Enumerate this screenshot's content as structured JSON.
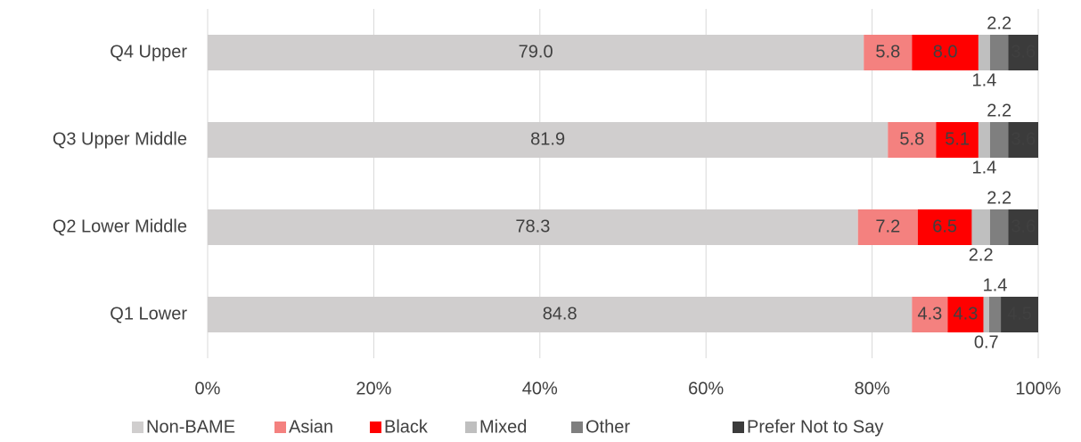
{
  "chart_data": {
    "type": "stacked_barh",
    "categories": [
      "Q4 Upper",
      "Q3 Upper Middle",
      "Q2 Lower Middle",
      "Q1 Lower"
    ],
    "series": [
      {
        "name": "Non-BAME",
        "color": "#d0cece",
        "values": [
          79.0,
          81.9,
          78.3,
          84.8
        ],
        "value_labels": [
          "79.0",
          "81.9",
          "78.3",
          "84.8"
        ]
      },
      {
        "name": "Asian",
        "color": "#f4817f",
        "values": [
          5.8,
          5.8,
          7.2,
          4.3
        ],
        "value_labels": [
          "5.8",
          "5.8",
          "7.2",
          "4.3"
        ]
      },
      {
        "name": "Black",
        "color": "#ff0000",
        "values": [
          8.0,
          5.1,
          6.5,
          4.3
        ],
        "value_labels": [
          "8.0",
          "5.1",
          "6.5",
          "4.3"
        ]
      },
      {
        "name": "Mixed",
        "color": "#bfbfbf",
        "values": [
          1.4,
          1.4,
          2.2,
          0.7
        ],
        "value_labels": [
          "1.4",
          "1.4",
          "2.2",
          "0.7"
        ]
      },
      {
        "name": "Other",
        "color": "#7f7f7f",
        "values": [
          2.2,
          2.2,
          2.2,
          1.4
        ],
        "value_labels": [
          "2.2",
          "2.2",
          "2.2",
          "1.4"
        ]
      },
      {
        "name": "Prefer Not to Say",
        "color": "#3b3b3b",
        "values": [
          3.6,
          3.6,
          3.6,
          4.5
        ],
        "value_labels": [
          "3.6",
          "3.6",
          "3.6",
          "4.5"
        ]
      }
    ],
    "xlim": [
      0,
      100
    ],
    "xticks": [
      {
        "value": 0,
        "label": "0%"
      },
      {
        "value": 20,
        "label": "20%"
      },
      {
        "value": 40,
        "label": "40%"
      },
      {
        "value": 60,
        "label": "60%"
      },
      {
        "value": 80,
        "label": "80%"
      },
      {
        "value": 100,
        "label": "100%"
      }
    ],
    "grid": true,
    "legend": "bottom"
  }
}
